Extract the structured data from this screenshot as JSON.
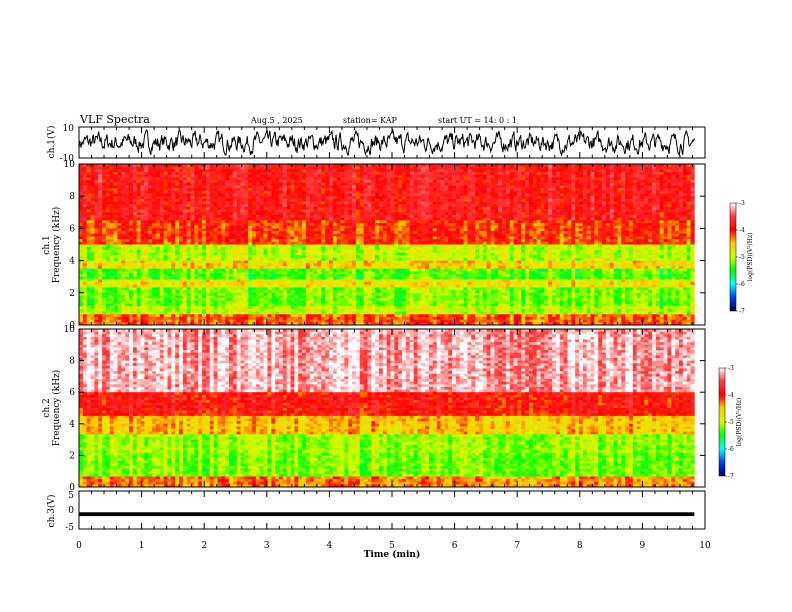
{
  "header": {
    "title": "VLF Spectra",
    "date": "Aug.5 , 2025",
    "station": "station= KAP",
    "start_time": "start UT = 14: 0 : 1"
  },
  "chart_data": [
    {
      "type": "line",
      "panel": "ch1-waveform",
      "ylabel": "ch.1(V)",
      "ylim": [
        -10,
        10
      ],
      "yticks": [
        10,
        -10
      ],
      "xlim": [
        0,
        10
      ],
      "data_end_x": 9.83,
      "description_level": "noisy waveform oscillating roughly between -6 and 6 V"
    },
    {
      "type": "heatmap",
      "panel": "ch1-spectrogram",
      "ylabel_channel": "ch.1",
      "ylabel": "Frequency (kHz)",
      "ylim": [
        0,
        10
      ],
      "yticks": [
        0,
        2,
        4,
        6,
        8,
        10
      ],
      "xlim": [
        0,
        10
      ],
      "colorbar": {
        "label": "log(PSD)(V²/Hz)",
        "range": [
          -7,
          -3
        ],
        "ticks": [
          -3,
          -4,
          -5,
          -6,
          -7
        ]
      },
      "bands": [
        {
          "from": 0,
          "to": 0.6,
          "level": -4.2
        },
        {
          "from": 0.6,
          "to": 1.2,
          "level": -5.0
        },
        {
          "from": 1.2,
          "to": 2.3,
          "level": -5.2
        },
        {
          "from": 2.3,
          "to": 2.9,
          "level": -4.7
        },
        {
          "from": 2.9,
          "to": 3.5,
          "level": -5.3
        },
        {
          "from": 3.5,
          "to": 4.0,
          "level": -4.6
        },
        {
          "from": 4.0,
          "to": 5.0,
          "level": -5.0
        },
        {
          "from": 5.0,
          "to": 6.5,
          "level": -4.1
        },
        {
          "from": 6.5,
          "to": 10,
          "level": -3.8
        }
      ]
    },
    {
      "type": "heatmap",
      "panel": "ch2-spectrogram",
      "ylabel_channel": "ch.2",
      "ylabel": "Frequency (kHz)",
      "ylim": [
        0,
        10
      ],
      "yticks": [
        0,
        2,
        4,
        6,
        8,
        10
      ],
      "xlim": [
        0,
        10
      ],
      "colorbar": {
        "label": "log(PSD)(V²/Hz)",
        "range": [
          -7,
          -3
        ],
        "ticks": [
          -3,
          -4,
          -5,
          -6,
          -7
        ]
      },
      "bands": [
        {
          "from": 0,
          "to": 0.6,
          "level": -4.3
        },
        {
          "from": 0.6,
          "to": 2.2,
          "level": -5.2
        },
        {
          "from": 2.2,
          "to": 3.3,
          "level": -5.1
        },
        {
          "from": 3.3,
          "to": 4.5,
          "level": -4.5
        },
        {
          "from": 4.5,
          "to": 6.0,
          "level": -3.9
        },
        {
          "from": 6.0,
          "to": 10,
          "level": -3.2
        }
      ]
    },
    {
      "type": "line",
      "panel": "ch3-waveform",
      "ylabel": "ch.3(V)",
      "ylim": [
        -5,
        5
      ],
      "yticks": [
        5,
        0,
        -5
      ],
      "xlim": [
        0,
        10
      ],
      "data_end_x": 9.83,
      "description_level": "dense oscillation around -1 V"
    }
  ],
  "x_axis": {
    "label": "Time (min)",
    "ticks": [
      "0",
      "1",
      "2",
      "3",
      "4",
      "5",
      "6",
      "7",
      "8",
      "9",
      "10"
    ]
  },
  "colors": {
    "waveform": "#000000",
    "spectrogram_high": "#ff2020",
    "spectrogram_mid": "#ffee00",
    "spectrogram_low": "#22ee22"
  }
}
